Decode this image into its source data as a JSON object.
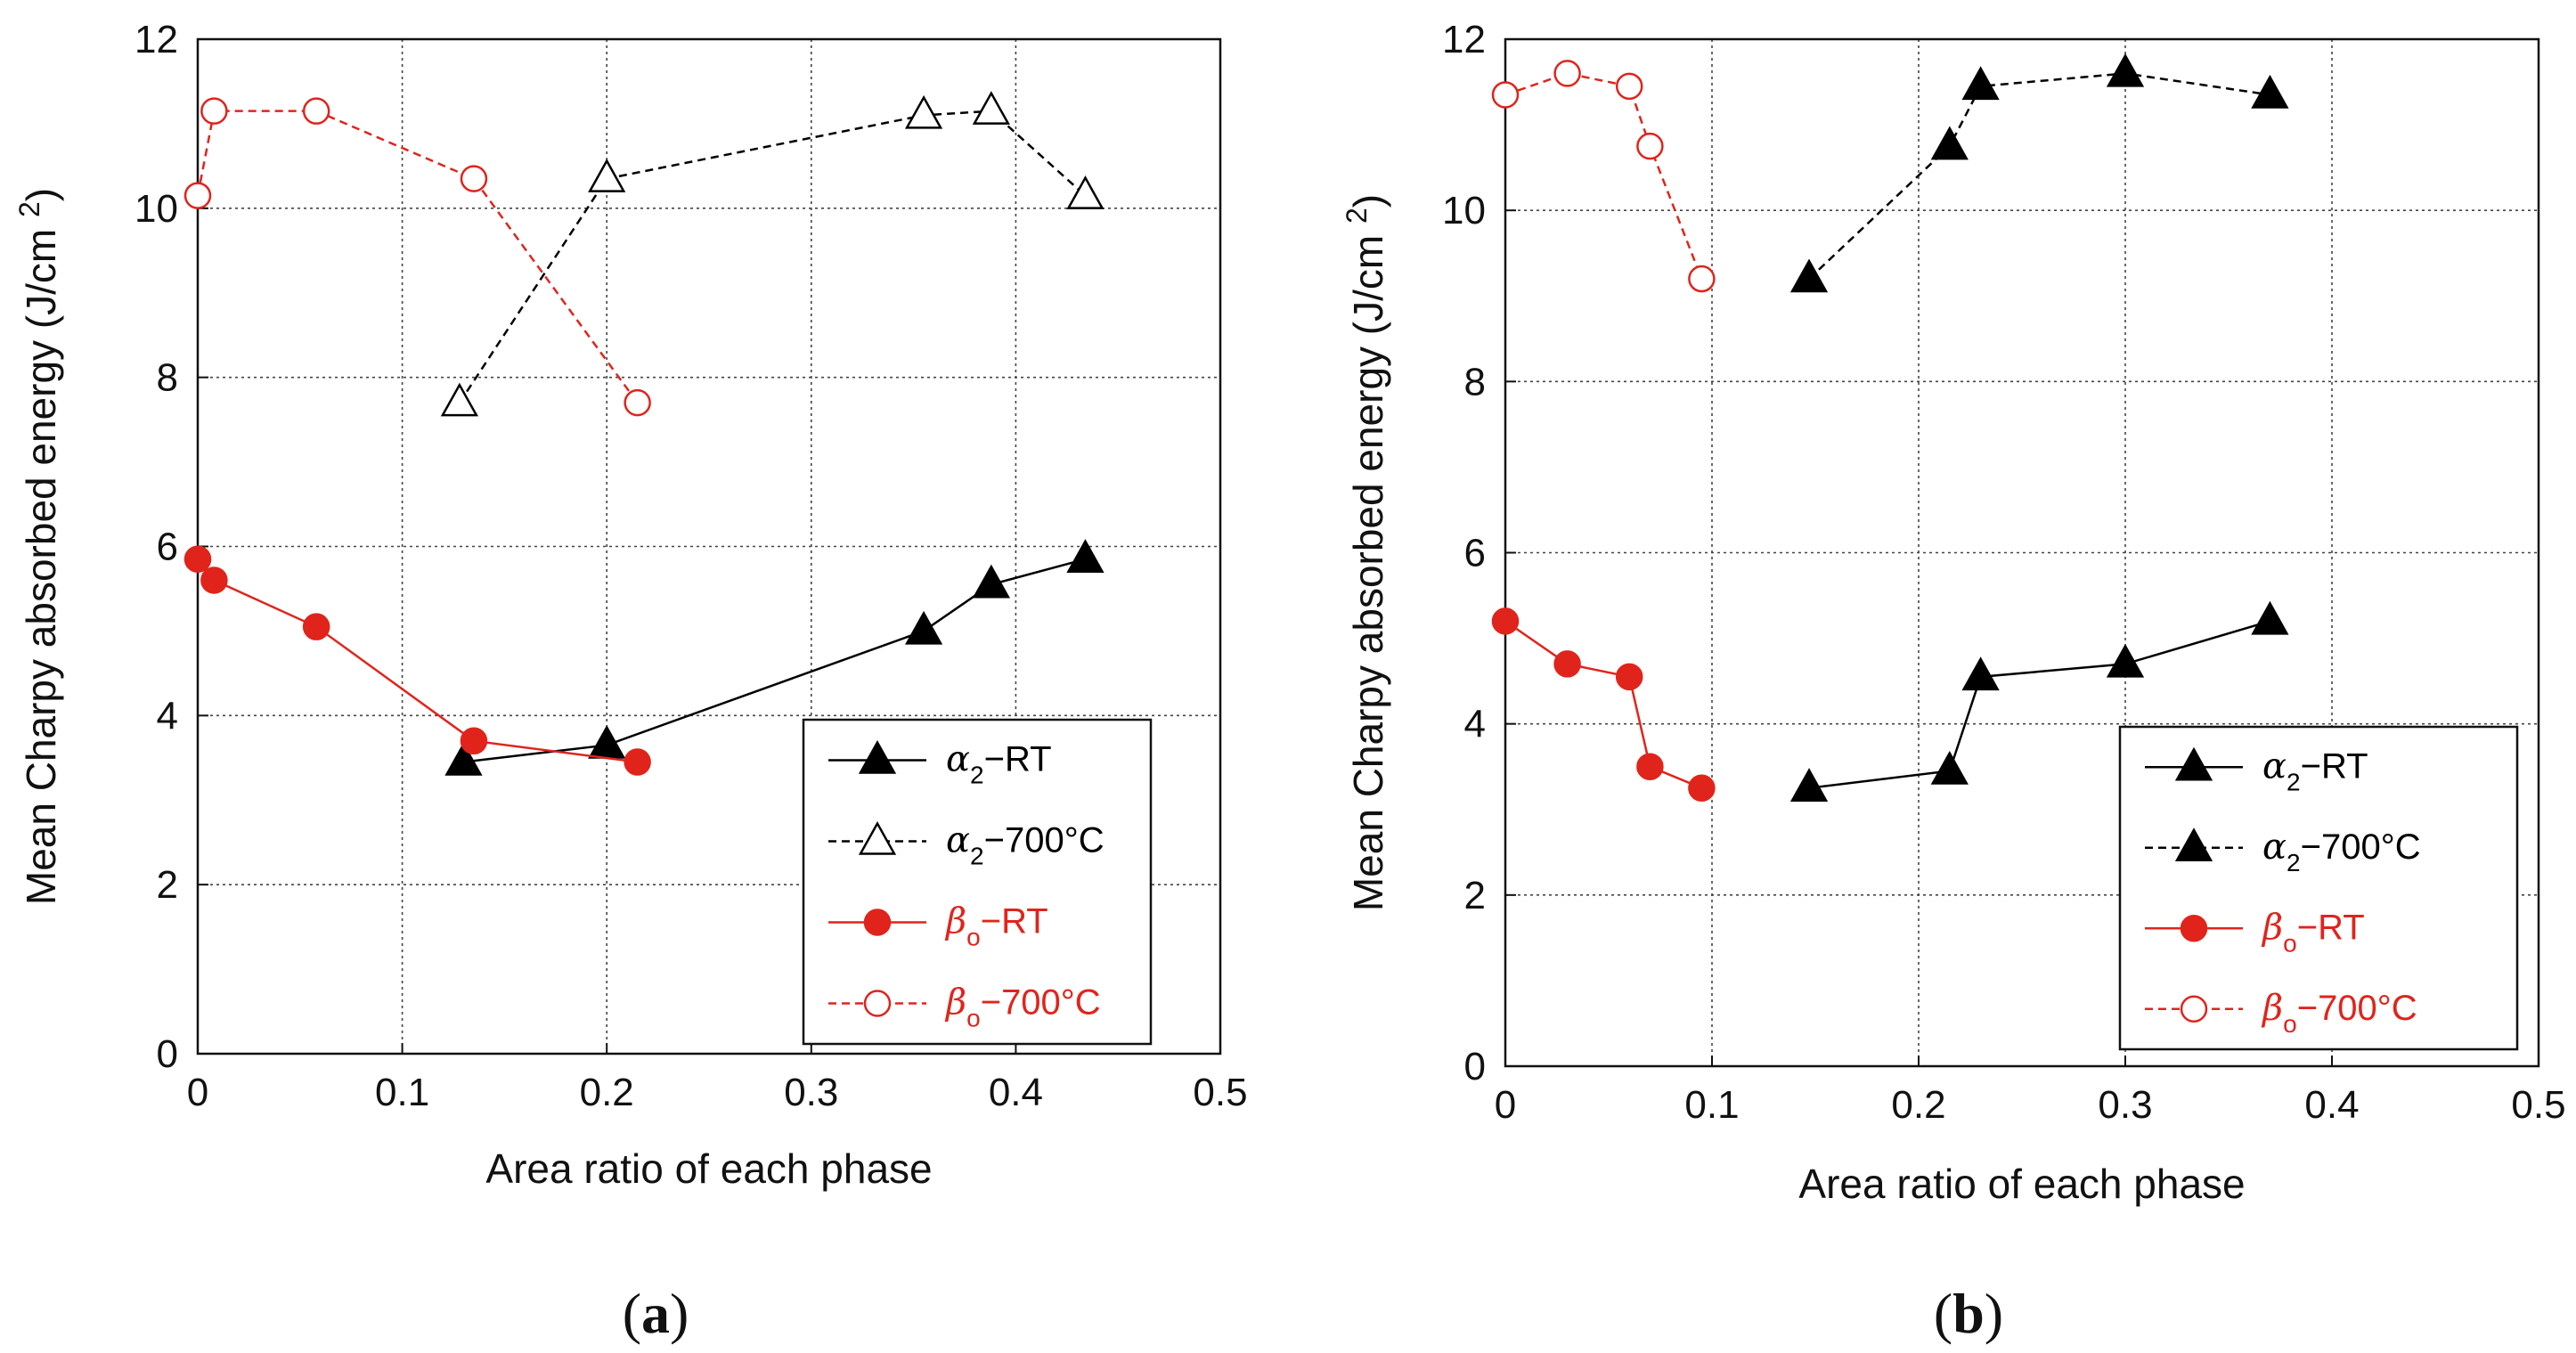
{
  "chart_data": [
    {
      "panel": "a",
      "panel_label": "(a)",
      "type": "line",
      "xlabel": "Area ratio of each phase",
      "ylabel": "Mean Charpy absorbed energy (J/cm²)",
      "ylabel_text": "Mean Charpy absorbed energy (J/cm",
      "ylabel_sup": "2",
      "ylabel_close": ")",
      "xlim": [
        0,
        0.5
      ],
      "ylim": [
        0,
        12
      ],
      "xticks": [
        "0",
        "0.1",
        "0.2",
        "0.3",
        "0.4",
        "0.5"
      ],
      "yticks": [
        "0",
        "2",
        "4",
        "6",
        "8",
        "10",
        "12"
      ],
      "grid": true,
      "legend_position": "bottom-right",
      "series": [
        {
          "name": "α2-RT",
          "greek": "α",
          "sub": "2",
          "suffix": "−RT",
          "color": "#000000",
          "dash": "solid",
          "marker": "triangle",
          "filled": true,
          "x": [
            0.13,
            0.2,
            0.355,
            0.388,
            0.434
          ],
          "y": [
            3.45,
            3.65,
            5.0,
            5.55,
            5.85
          ]
        },
        {
          "name": "α2-700°C",
          "greek": "α",
          "sub": "2",
          "suffix": "−700°C",
          "color": "#000000",
          "dash": "dashed",
          "marker": "triangle",
          "filled": false,
          "x": [
            0.128,
            0.2,
            0.355,
            0.388,
            0.434
          ],
          "y": [
            7.7,
            10.35,
            11.1,
            11.15,
            10.15
          ]
        },
        {
          "name": "βo-RT",
          "greek": "β",
          "sub": "o",
          "suffix": "−RT",
          "color": "#e0241c",
          "dash": "solid",
          "marker": "circle",
          "filled": true,
          "x": [
            0.0,
            0.008,
            0.058,
            0.135,
            0.215
          ],
          "y": [
            5.85,
            5.6,
            5.05,
            3.7,
            3.45
          ]
        },
        {
          "name": "βo-700°C",
          "greek": "β",
          "sub": "o",
          "suffix": "−700°C",
          "color": "#e0241c",
          "dash": "dashed",
          "marker": "circle",
          "filled": false,
          "x": [
            0.0,
            0.008,
            0.058,
            0.135,
            0.215
          ],
          "y": [
            10.15,
            11.15,
            11.15,
            10.35,
            7.7
          ]
        }
      ]
    },
    {
      "panel": "b",
      "panel_label": "(b)",
      "type": "line",
      "xlabel": "Area ratio of each phase",
      "ylabel": "Mean Charpy absorbed energy (J/cm²)",
      "ylabel_text": "Mean Charpy absorbed energy (J/cm",
      "ylabel_sup": "2",
      "ylabel_close": ")",
      "xlim": [
        0,
        0.5
      ],
      "ylim": [
        0,
        12
      ],
      "xticks": [
        "0",
        "0.1",
        "0.2",
        "0.3",
        "0.4",
        "0.5"
      ],
      "yticks": [
        "0",
        "2",
        "4",
        "6",
        "8",
        "10",
        "12"
      ],
      "grid": true,
      "legend_position": "bottom-right",
      "series": [
        {
          "name": "α2-RT",
          "greek": "α",
          "sub": "2",
          "suffix": "−RT",
          "color": "#000000",
          "dash": "solid",
          "marker": "triangle",
          "filled": true,
          "x": [
            0.147,
            0.215,
            0.23,
            0.3,
            0.37
          ],
          "y": [
            3.25,
            3.45,
            4.55,
            4.7,
            5.2
          ]
        },
        {
          "name": "α2-700°C",
          "greek": "α",
          "sub": "2",
          "suffix": "−700°C",
          "color": "#000000",
          "dash": "dashed",
          "marker": "triangle",
          "filled": true,
          "x": [
            0.147,
            0.215,
            0.23,
            0.3,
            0.37
          ],
          "y": [
            9.2,
            10.75,
            11.45,
            11.6,
            11.35
          ]
        },
        {
          "name": "βo-RT",
          "greek": "β",
          "sub": "o",
          "suffix": "−RT",
          "color": "#e0241c",
          "dash": "solid",
          "marker": "circle",
          "filled": true,
          "x": [
            0.0,
            0.03,
            0.06,
            0.07,
            0.095
          ],
          "y": [
            5.2,
            4.7,
            4.55,
            3.5,
            3.25
          ]
        },
        {
          "name": "βo-700°C",
          "greek": "β",
          "sub": "o",
          "suffix": "−700°C",
          "color": "#e0241c",
          "dash": "dashed",
          "marker": "circle",
          "filled": false,
          "x": [
            0.0,
            0.03,
            0.06,
            0.07,
            0.095
          ],
          "y": [
            11.35,
            11.6,
            11.45,
            10.75,
            9.2
          ]
        }
      ]
    }
  ]
}
